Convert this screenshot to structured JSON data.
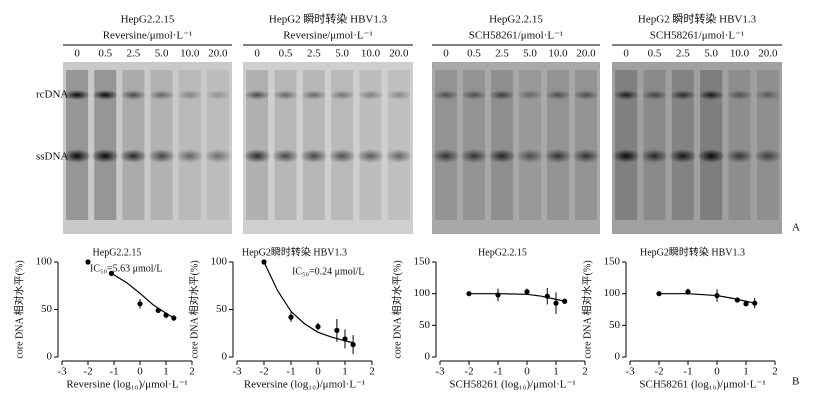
{
  "blots": [
    {
      "title": "HepG2.2.15",
      "subtitle": "Reversine/μmol·L⁻¹",
      "lanes": [
        "0",
        "0.5",
        "2.5",
        "5.0",
        "10.0",
        "20.0"
      ]
    },
    {
      "title": "HepG2 瞬时转染 HBV1.3",
      "subtitle": "Reversine/μmol·L⁻¹",
      "lanes": [
        "0",
        "0.5",
        "2.5",
        "5.0",
        "10.0",
        "20.0"
      ]
    },
    {
      "title": "HepG2.2.15",
      "subtitle": "SCH58261/μmol·L⁻¹",
      "lanes": [
        "0",
        "0.5",
        "2.5",
        "5.0",
        "10.0",
        "20.0"
      ]
    },
    {
      "title": "HepG2 瞬时转染 HBV1.3",
      "subtitle": "SCH58261/μmol·L⁻¹",
      "lanes": [
        "0",
        "0.5",
        "2.5",
        "5.0",
        "10.0",
        "20.0"
      ]
    }
  ],
  "band_labels": [
    "rcDNA",
    "ssDNA"
  ],
  "panel_labels": [
    "A",
    "B"
  ],
  "chart_data": [
    {
      "type": "scatter",
      "title": "HepG2.2.15",
      "annotation": "IC₅₀=5.63 μmol/L",
      "xlabel": "Reversine (log₁₀)/μmol·L⁻¹",
      "ylabel": "core DNA 相对水平(%)",
      "x": [
        -2,
        -1.1,
        0,
        0.7,
        1,
        1.3
      ],
      "values": [
        100,
        88,
        56,
        49,
        44,
        41
      ],
      "errors": [
        0,
        0,
        5,
        2,
        3,
        3
      ],
      "fit_x": [
        -1.1,
        -0.5,
        0,
        0.5,
        1,
        1.3
      ],
      "fit_values": [
        88,
        78,
        67,
        55,
        46,
        41
      ],
      "xlim": [
        -3,
        2
      ],
      "xticks": [
        -3,
        -2,
        -1,
        0,
        1,
        2
      ],
      "ylim": [
        0,
        100
      ],
      "yticks": [
        0,
        50,
        100
      ],
      "color": "#000000"
    },
    {
      "type": "scatter",
      "title": "HepG2瞬时转染 HBV1.3",
      "annotation": "IC₅₀=0.24 μmol/L",
      "xlabel": "Reversine (log₁₀)/μmol·L⁻¹",
      "ylabel": "core DNA 相对水平(%)",
      "x": [
        -2,
        -1,
        0,
        0.7,
        1,
        1.3
      ],
      "values": [
        100,
        42,
        32,
        28,
        19,
        13
      ],
      "errors": [
        0,
        5,
        4,
        12,
        10,
        10
      ],
      "fit_x": [
        -2,
        -1.5,
        -1,
        -0.5,
        0,
        0.5,
        1,
        1.3
      ],
      "fit_values": [
        100,
        70,
        48,
        35,
        26,
        21,
        17,
        15
      ],
      "xlim": [
        -3,
        2
      ],
      "xticks": [
        -3,
        -2,
        -1,
        0,
        1,
        2
      ],
      "ylim": [
        0,
        100
      ],
      "yticks": [
        0,
        50,
        100
      ],
      "color": "#000000"
    },
    {
      "type": "scatter",
      "title": "HepG2.2.15",
      "xlabel": "SCH58261 (log₁₀)/μmol·L⁻¹",
      "ylabel": "core DNA 相对水平(%)",
      "x": [
        -2,
        -1,
        0,
        0.7,
        1,
        1.3
      ],
      "values": [
        100,
        98,
        103,
        96,
        85,
        88
      ],
      "errors": [
        0,
        10,
        5,
        13,
        17,
        4
      ],
      "fit_x": [
        -2,
        -1,
        0,
        0.5,
        1,
        1.3
      ],
      "fit_values": [
        100,
        100,
        99,
        96,
        91,
        88
      ],
      "xlim": [
        -3,
        2
      ],
      "xticks": [
        -3,
        -2,
        -1,
        0,
        1,
        2
      ],
      "ylim": [
        0,
        150
      ],
      "yticks": [
        0,
        50,
        100,
        150
      ],
      "color": "#000000"
    },
    {
      "type": "scatter",
      "title": "HepG2瞬时转染 HBV1.3",
      "xlabel": "SCH58261 (log₁₀)/μmol·L⁻¹",
      "ylabel": "core DNA 相对水平(%)",
      "x": [
        -2,
        -1,
        0,
        0.7,
        1,
        1.3
      ],
      "values": [
        100,
        103,
        97,
        90,
        84,
        85
      ],
      "errors": [
        0,
        5,
        10,
        3,
        3,
        8
      ],
      "fit_x": [
        -2,
        -1,
        0,
        0.5,
        1,
        1.3
      ],
      "fit_values": [
        100,
        100,
        97,
        93,
        88,
        85
      ],
      "xlim": [
        -3,
        2
      ],
      "xticks": [
        -3,
        -2,
        -1,
        0,
        1,
        2
      ],
      "ylim": [
        0,
        150
      ],
      "yticks": [
        0,
        50,
        100,
        150
      ],
      "color": "#000000"
    }
  ]
}
